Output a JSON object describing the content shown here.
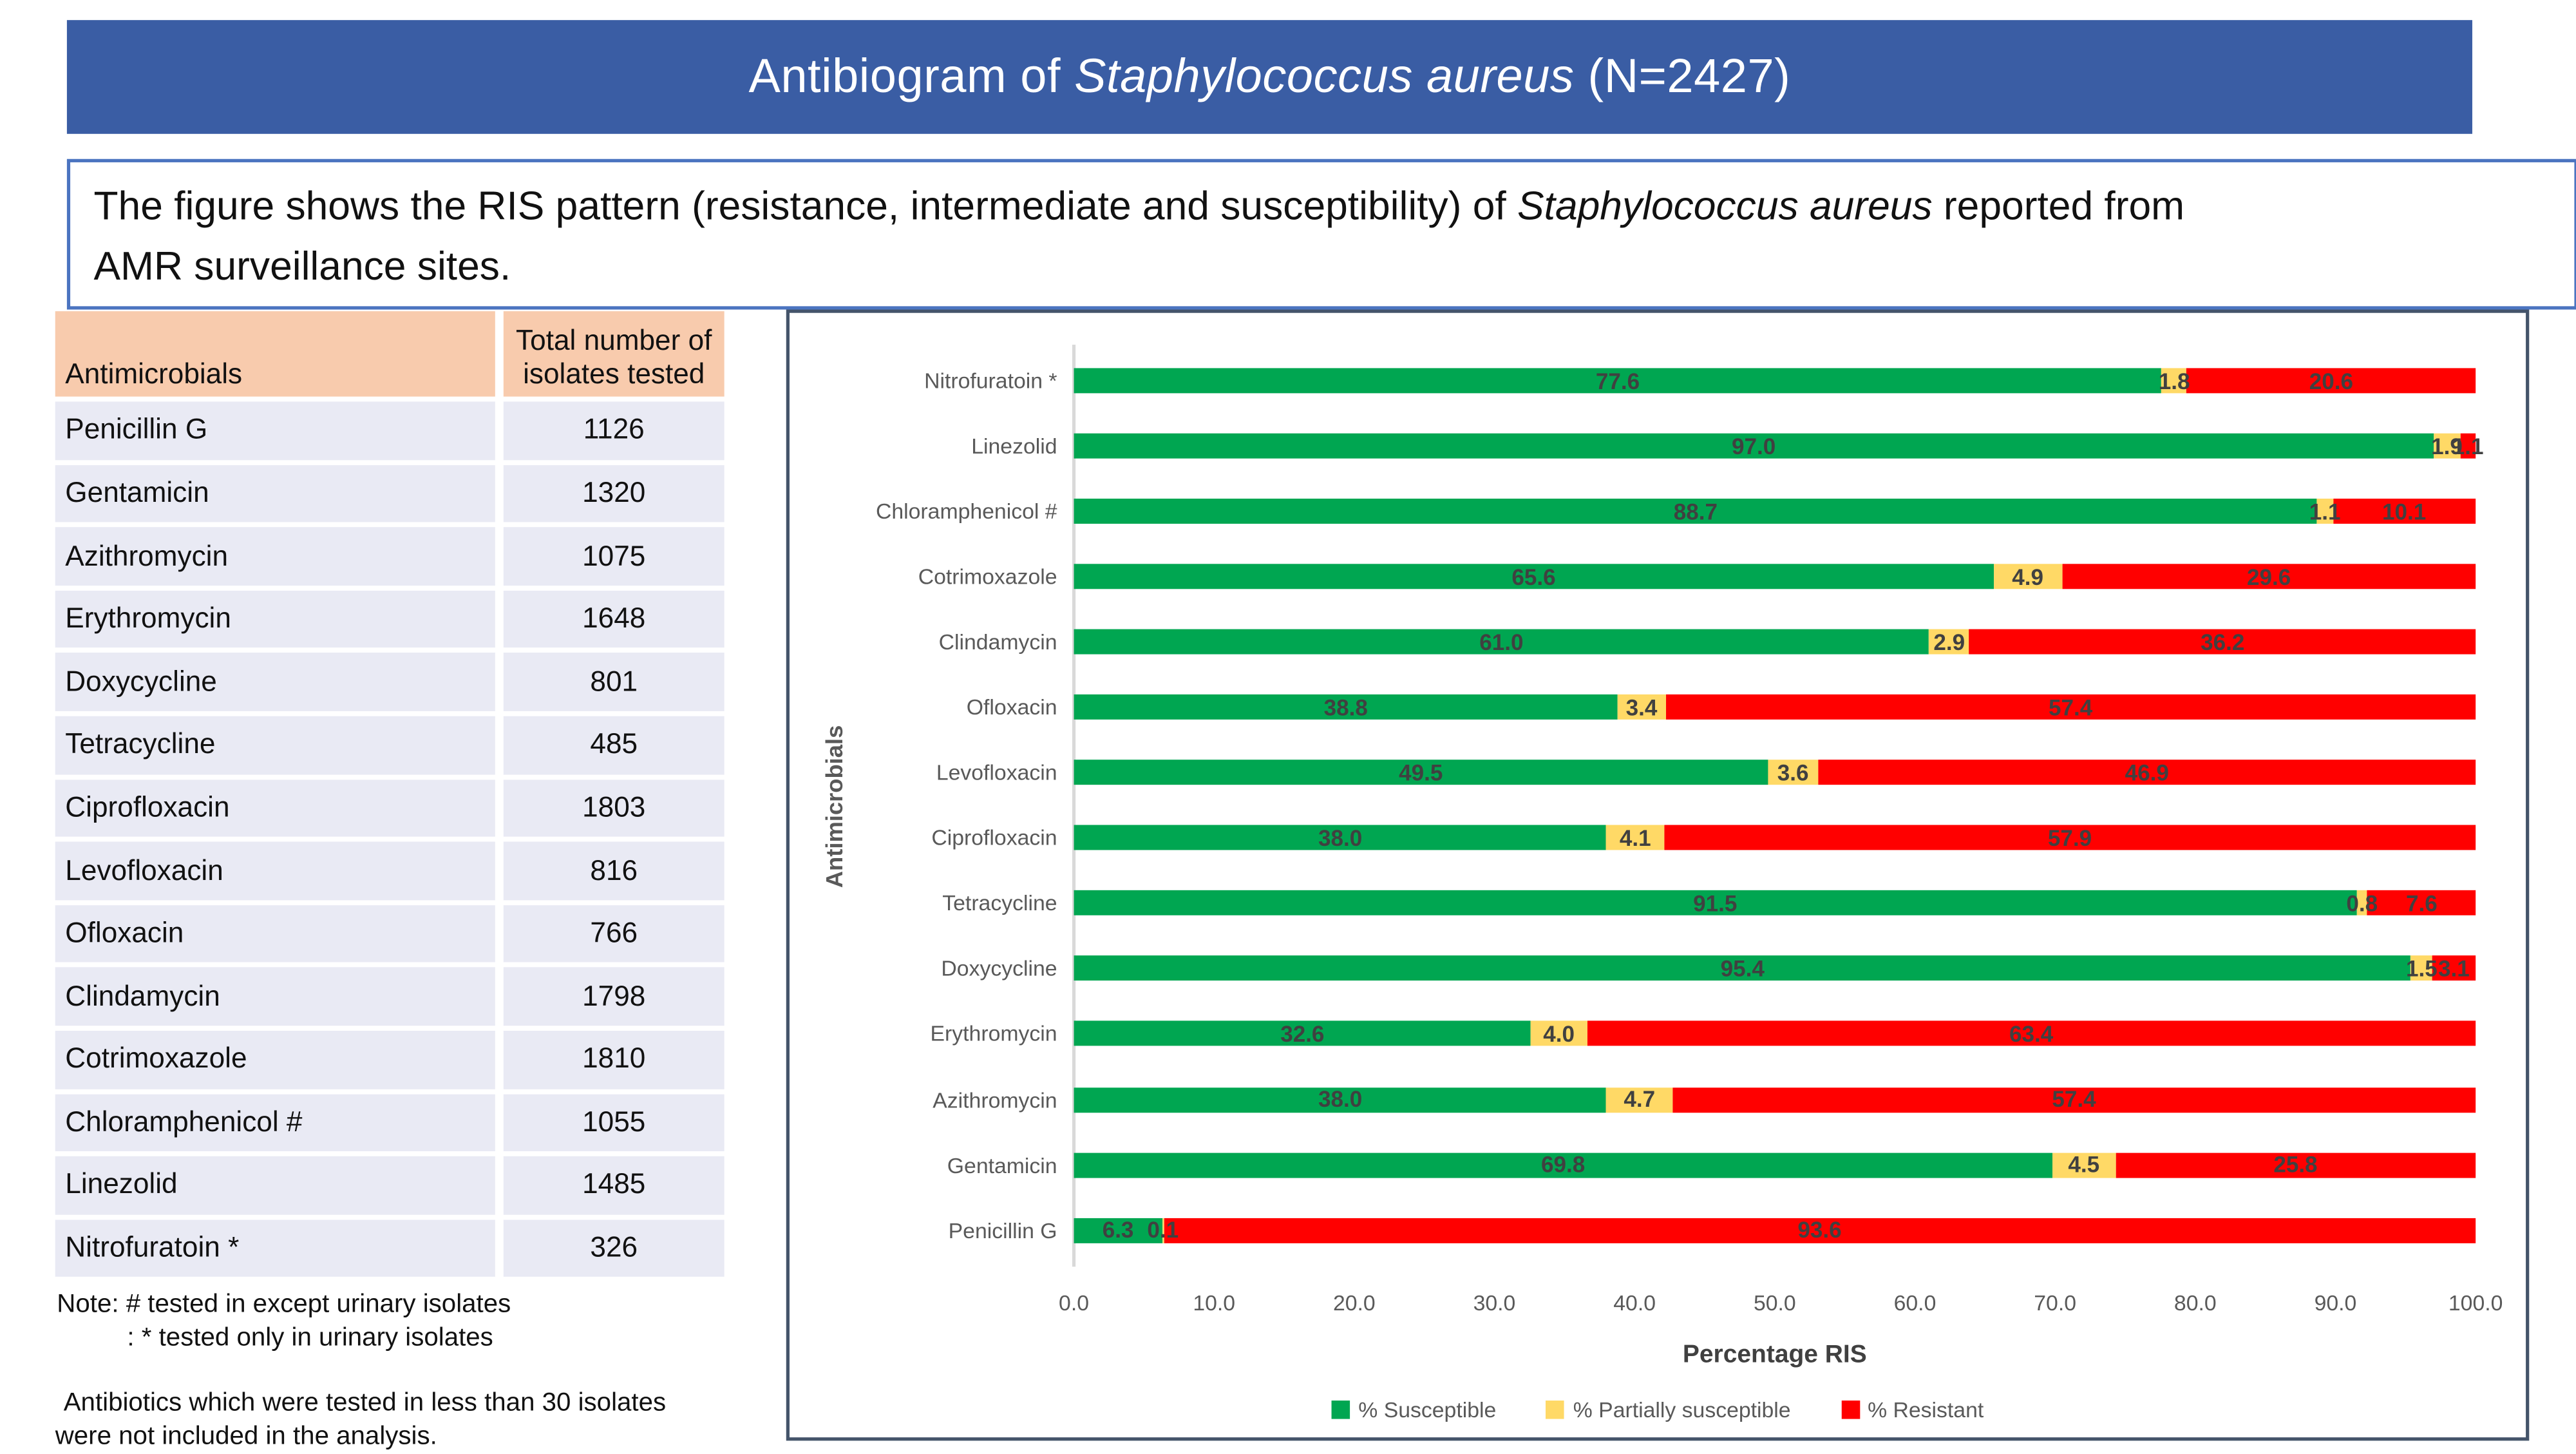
{
  "title": {
    "prefix": "Antibiogram of ",
    "species": "Staphylococcus aureus",
    "suffix": " (N=2427)"
  },
  "description": {
    "line1_prefix": "The figure shows the RIS pattern (resistance, intermediate and susceptibility) of ",
    "line1_species": "Staphylococcus aureus",
    "line1_suffix": " reported from",
    "line2": "AMR surveillance sites."
  },
  "table": {
    "headers": [
      "Antimicrobials",
      "Total number of isolates tested"
    ],
    "rows": [
      [
        "Penicillin G",
        1126
      ],
      [
        "Gentamicin",
        1320
      ],
      [
        "Azithromycin",
        1075
      ],
      [
        "Erythromycin",
        1648
      ],
      [
        "Doxycycline",
        801
      ],
      [
        "Tetracycline",
        485
      ],
      [
        "Ciprofloxacin",
        1803
      ],
      [
        "Levofloxacin",
        816
      ],
      [
        "Ofloxacin",
        766
      ],
      [
        "Clindamycin",
        1798
      ],
      [
        "Cotrimoxazole",
        1810
      ],
      [
        "Chloramphenicol #",
        1055
      ],
      [
        "Linezolid",
        1485
      ],
      [
        "Nitrofuratoin *",
        326
      ]
    ]
  },
  "notes": {
    "note_line1": "Note: # tested in except urinary isolates",
    "note_line2": ": * tested only in urinary isolates",
    "footnote_line1": "Antibiotics which were tested in less than 30 isolates",
    "footnote_line2": "were not included in the analysis."
  },
  "chart_data": {
    "type": "bar",
    "orientation": "horizontal",
    "stacked": true,
    "title": "",
    "xlabel": "Percentage RIS",
    "ylabel": "Antimicrobials",
    "xlim": [
      0,
      100
    ],
    "xtick_step": 10,
    "xtick_decimals": 1,
    "grid": false,
    "legend_position": "bottom",
    "categories_top_to_bottom": [
      "Nitrofuratoin *",
      "Linezolid",
      "Chloramphenicol #",
      "Cotrimoxazole",
      "Clindamycin",
      "Ofloxacin",
      "Levofloxacin",
      "Ciprofloxacin",
      "Tetracycline",
      "Doxycycline",
      "Erythromycin",
      "Azithromycin",
      "Gentamicin",
      "Penicillin G"
    ],
    "series": [
      {
        "name": "% Susceptible",
        "color": "#00A651",
        "values": [
          77.6,
          97.0,
          88.7,
          65.6,
          61.0,
          38.8,
          49.5,
          38.0,
          91.5,
          95.4,
          32.6,
          38.0,
          69.8,
          6.3
        ]
      },
      {
        "name": "% Partially susceptible",
        "color": "#FFD966",
        "values": [
          1.8,
          1.9,
          1.1,
          4.9,
          2.9,
          3.4,
          3.6,
          4.1,
          0.8,
          1.5,
          4.0,
          4.7,
          4.5,
          0.1
        ]
      },
      {
        "name": "% Resistant",
        "color": "#FF0000",
        "values": [
          20.6,
          1.1,
          10.1,
          29.6,
          36.2,
          57.4,
          46.9,
          57.9,
          7.6,
          3.1,
          63.4,
          57.4,
          25.8,
          93.6
        ]
      }
    ]
  },
  "colors": {
    "title_bar_bg": "#3A5DA4",
    "description_border": "#4B74C0",
    "chart_border": "#44546A",
    "table_header_bg": "#F8CBAD",
    "table_row_bg": "#E9EAF4",
    "axis_label_gray": "#595959",
    "value_label_gray": "#404040"
  }
}
